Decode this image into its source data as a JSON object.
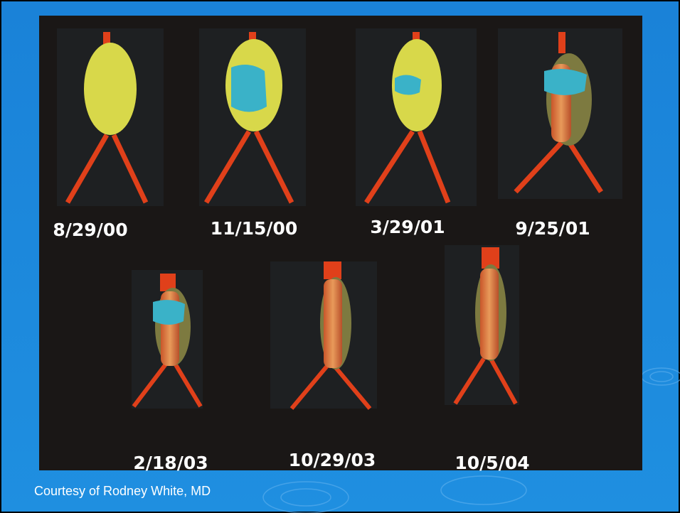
{
  "slide": {
    "panels": [
      {
        "date": "8/29/00"
      },
      {
        "date": "11/15/00"
      },
      {
        "date": "3/29/01"
      },
      {
        "date": "9/25/01"
      },
      {
        "date": "2/18/03"
      },
      {
        "date": "10/29/03"
      },
      {
        "date": "10/5/04"
      }
    ],
    "caption": "Courtesy of Rodney White, MD"
  }
}
